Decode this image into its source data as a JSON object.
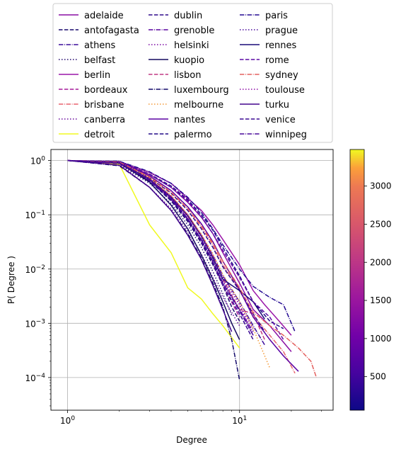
{
  "chart_data": {
    "type": "line",
    "xscale": "log",
    "yscale": "log",
    "xlabel": "Degree",
    "ylabel": "P( Degree )",
    "xlim": [
      0.8,
      35
    ],
    "ylim": [
      2.5e-05,
      1.6
    ],
    "grid": true,
    "legend_position": "top, 3 columns",
    "x_ticks": [
      {
        "v": 1,
        "base": "10",
        "exp": "0"
      },
      {
        "v": 10,
        "base": "10",
        "exp": "1"
      }
    ],
    "y_ticks": [
      {
        "v": 1,
        "base": "10",
        "exp": "0"
      },
      {
        "v": 0.1,
        "base": "10",
        "exp": "−1"
      },
      {
        "v": 0.01,
        "base": "10",
        "exp": "−2"
      },
      {
        "v": 0.001,
        "base": "10",
        "exp": "−3"
      },
      {
        "v": 0.0001,
        "base": "10",
        "exp": "−4"
      }
    ],
    "colorbar": {
      "min": 60,
      "max": 3480,
      "ticks": [
        "500",
        "1000",
        "1500",
        "2000",
        "2500",
        "3000"
      ],
      "tick_values": [
        500,
        1000,
        1500,
        2000,
        2500,
        3000
      ],
      "colormap": "plasma"
    },
    "series": [
      {
        "name": "adelaide",
        "style": "solid",
        "color": "#8a0fa3",
        "x": [
          1,
          2,
          3,
          4,
          5,
          6,
          7,
          8,
          10,
          12,
          15,
          20
        ],
        "y": [
          1,
          0.93,
          0.55,
          0.32,
          0.17,
          0.09,
          0.045,
          0.02,
          0.0055,
          0.0018,
          0.0009,
          0.0003
        ]
      },
      {
        "name": "antofagasta",
        "style": "dashed",
        "color": "#1a0a6e",
        "x": [
          1,
          2,
          3,
          4,
          5,
          6,
          7,
          8,
          9,
          10
        ],
        "y": [
          1,
          0.88,
          0.42,
          0.18,
          0.075,
          0.03,
          0.012,
          0.005,
          0.002,
          0.0011
        ]
      },
      {
        "name": "athens",
        "style": "dashdot",
        "color": "#3a0a9a",
        "x": [
          1,
          2,
          3,
          4,
          5,
          6,
          7,
          8,
          10,
          12,
          14
        ],
        "y": [
          1,
          0.9,
          0.46,
          0.22,
          0.1,
          0.042,
          0.018,
          0.0075,
          0.0025,
          0.0009,
          0.0004
        ]
      },
      {
        "name": "belfast",
        "style": "dotted",
        "color": "#24086e",
        "x": [
          1,
          2,
          3,
          4,
          5,
          6,
          7,
          8,
          9
        ],
        "y": [
          1,
          0.85,
          0.38,
          0.16,
          0.065,
          0.025,
          0.009,
          0.0035,
          0.0014
        ]
      },
      {
        "name": "berlin",
        "style": "solid",
        "color": "#9a16a8",
        "x": [
          1,
          2,
          3,
          4,
          5,
          6,
          7,
          8,
          10,
          12,
          14,
          17,
          20
        ],
        "y": [
          1,
          0.96,
          0.6,
          0.38,
          0.2,
          0.12,
          0.065,
          0.035,
          0.012,
          0.004,
          0.0022,
          0.0011,
          0.0006
        ]
      },
      {
        "name": "bordeaux",
        "style": "dashed",
        "color": "#a51c9a",
        "x": [
          1,
          2,
          3,
          4,
          5,
          6,
          7,
          8,
          10
        ],
        "y": [
          1,
          0.9,
          0.45,
          0.2,
          0.085,
          0.034,
          0.013,
          0.005,
          0.0013
        ]
      },
      {
        "name": "brisbane",
        "style": "dashdot",
        "color": "#e8646e",
        "x": [
          1,
          2,
          3,
          4,
          5,
          6,
          7,
          8,
          10,
          12,
          15,
          18,
          21
        ],
        "y": [
          1,
          0.94,
          0.5,
          0.26,
          0.13,
          0.06,
          0.028,
          0.012,
          0.004,
          0.0014,
          0.0006,
          0.0003,
          0.00012
        ]
      },
      {
        "name": "canberra",
        "style": "dotted",
        "color": "#6a0a9e",
        "x": [
          1,
          2,
          3,
          4,
          5,
          6,
          7,
          8,
          10
        ],
        "y": [
          1,
          0.85,
          0.32,
          0.13,
          0.05,
          0.019,
          0.007,
          0.003,
          0.0009
        ]
      },
      {
        "name": "detroit",
        "style": "solid",
        "color": "#f0f921",
        "x": [
          1,
          2,
          3,
          4,
          5,
          6,
          7,
          8,
          10
        ],
        "y": [
          1,
          0.85,
          0.065,
          0.02,
          0.0045,
          0.0028,
          0.0015,
          0.0009,
          0.00035
        ]
      },
      {
        "name": "dublin",
        "style": "dashed",
        "color": "#2e0a8c",
        "x": [
          1,
          2,
          3,
          4,
          5,
          6,
          7,
          8,
          10,
          12,
          14
        ],
        "y": [
          1,
          0.92,
          0.48,
          0.25,
          0.12,
          0.055,
          0.025,
          0.011,
          0.004,
          0.0015,
          0.0007
        ]
      },
      {
        "name": "grenoble",
        "style": "dashdot",
        "color": "#5a06a0",
        "x": [
          1,
          2,
          3,
          4,
          5,
          6,
          7,
          8,
          10,
          12
        ],
        "y": [
          1,
          0.88,
          0.42,
          0.19,
          0.082,
          0.034,
          0.014,
          0.0055,
          0.0018,
          0.0007
        ]
      },
      {
        "name": "helsinki",
        "style": "dotted",
        "color": "#7c08a4",
        "x": [
          1,
          2,
          3,
          4,
          5,
          6,
          7,
          8,
          10,
          12
        ],
        "y": [
          1,
          0.9,
          0.45,
          0.21,
          0.095,
          0.04,
          0.017,
          0.007,
          0.0022,
          0.0008
        ]
      },
      {
        "name": "kuopio",
        "style": "solid",
        "color": "#14085e",
        "x": [
          1,
          2,
          3,
          4,
          5,
          6,
          7,
          8,
          9,
          10
        ],
        "y": [
          1,
          0.9,
          0.4,
          0.15,
          0.055,
          0.018,
          0.0065,
          0.0025,
          0.001,
          0.0005
        ]
      },
      {
        "name": "lisbon",
        "style": "dashed",
        "color": "#c03a83",
        "x": [
          1,
          2,
          3,
          4,
          5,
          6,
          7,
          8,
          10,
          12,
          14
        ],
        "y": [
          1,
          0.9,
          0.46,
          0.22,
          0.1,
          0.042,
          0.017,
          0.0065,
          0.0018,
          0.0015,
          0.0005
        ]
      },
      {
        "name": "luxembourg",
        "style": "dashdot",
        "color": "#12086a",
        "x": [
          1,
          2,
          3,
          4,
          5,
          6,
          7,
          8,
          9,
          10
        ],
        "y": [
          1,
          0.8,
          0.32,
          0.12,
          0.045,
          0.016,
          0.0055,
          0.002,
          0.0005,
          9e-05
        ]
      },
      {
        "name": "melbourne",
        "style": "dotted",
        "color": "#f49a38",
        "x": [
          1,
          2,
          3,
          4,
          5,
          6,
          7,
          8,
          10,
          12,
          15
        ],
        "y": [
          1,
          0.93,
          0.48,
          0.23,
          0.1,
          0.044,
          0.019,
          0.008,
          0.0025,
          0.0008,
          0.00015
        ]
      },
      {
        "name": "nantes",
        "style": "solid",
        "color": "#5a02a4",
        "x": [
          1,
          2,
          3,
          4,
          5,
          6,
          7,
          8,
          10,
          12,
          15,
          18,
          22
        ],
        "y": [
          1,
          0.93,
          0.52,
          0.28,
          0.14,
          0.068,
          0.032,
          0.014,
          0.0042,
          0.0013,
          0.0005,
          0.00025,
          0.00013
        ]
      },
      {
        "name": "palermo",
        "style": "dashed",
        "color": "#220a88",
        "x": [
          1,
          2,
          3,
          4,
          5,
          6,
          7,
          8,
          10,
          12,
          15,
          18
        ],
        "y": [
          1,
          0.95,
          0.56,
          0.34,
          0.19,
          0.1,
          0.052,
          0.025,
          0.0075,
          0.0025,
          0.0011,
          0.0008
        ]
      },
      {
        "name": "paris",
        "style": "dashdot",
        "color": "#240a92",
        "x": [
          1,
          2,
          3,
          4,
          5,
          6,
          7,
          8,
          10,
          12,
          15,
          18,
          21
        ],
        "y": [
          1,
          0.97,
          0.62,
          0.38,
          0.21,
          0.11,
          0.055,
          0.028,
          0.01,
          0.0048,
          0.003,
          0.0022,
          0.0007
        ]
      },
      {
        "name": "prague",
        "style": "dotted",
        "color": "#4a0a9e",
        "x": [
          1,
          2,
          3,
          4,
          5,
          6,
          7,
          8,
          10,
          12
        ],
        "y": [
          1,
          0.9,
          0.44,
          0.2,
          0.085,
          0.036,
          0.015,
          0.006,
          0.0018,
          0.0006
        ]
      },
      {
        "name": "rennes",
        "style": "solid",
        "color": "#1a0a78",
        "x": [
          1,
          2,
          3,
          4,
          5,
          6,
          7,
          8,
          10,
          12,
          14
        ],
        "y": [
          1,
          0.92,
          0.45,
          0.21,
          0.095,
          0.04,
          0.016,
          0.0065,
          0.004,
          0.0025,
          0.0012
        ]
      },
      {
        "name": "rome",
        "style": "dashed",
        "color": "#5c0aa6",
        "x": [
          1,
          2,
          3,
          4,
          5,
          6,
          7,
          8,
          10,
          12,
          15,
          18
        ],
        "y": [
          1,
          0.95,
          0.55,
          0.32,
          0.18,
          0.092,
          0.045,
          0.022,
          0.007,
          0.0025,
          0.0013,
          0.0005
        ]
      },
      {
        "name": "sydney",
        "style": "dashdot",
        "color": "#e4605e",
        "x": [
          1,
          2,
          3,
          4,
          5,
          6,
          7,
          8,
          10,
          12,
          15,
          18,
          22,
          26,
          28
        ],
        "y": [
          1,
          0.93,
          0.5,
          0.26,
          0.13,
          0.063,
          0.03,
          0.014,
          0.0045,
          0.0016,
          0.0009,
          0.0006,
          0.00035,
          0.0002,
          0.0001
        ]
      },
      {
        "name": "toulouse",
        "style": "dotted",
        "color": "#8e0ca6",
        "x": [
          1,
          2,
          3,
          4,
          5,
          6,
          7,
          8,
          10,
          12
        ],
        "y": [
          1,
          0.9,
          0.45,
          0.21,
          0.093,
          0.04,
          0.017,
          0.007,
          0.0022,
          0.0006
        ]
      },
      {
        "name": "turku",
        "style": "solid",
        "color": "#44068e",
        "x": [
          1,
          2,
          3,
          4,
          5,
          6,
          7,
          8,
          9
        ],
        "y": [
          1,
          0.82,
          0.32,
          0.12,
          0.042,
          0.015,
          0.005,
          0.0018,
          0.0007
        ]
      },
      {
        "name": "venice",
        "style": "dashed",
        "color": "#3c0a94",
        "x": [
          1,
          2,
          3,
          4,
          5,
          6,
          7,
          8,
          10,
          12
        ],
        "y": [
          1,
          0.9,
          0.43,
          0.19,
          0.08,
          0.032,
          0.013,
          0.005,
          0.0015,
          0.0005
        ]
      },
      {
        "name": "winnipeg",
        "style": "dashdot",
        "color": "#48089c",
        "x": [
          1,
          2,
          3,
          4,
          5,
          6,
          7,
          8,
          10,
          12
        ],
        "y": [
          1,
          0.9,
          0.44,
          0.2,
          0.085,
          0.035,
          0.014,
          0.0055,
          0.0017,
          0.0006
        ]
      }
    ]
  }
}
